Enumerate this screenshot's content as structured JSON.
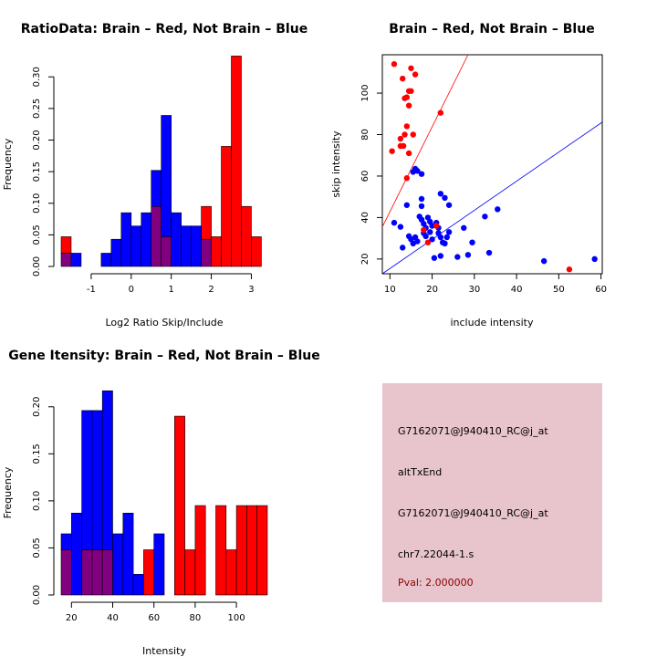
{
  "colors": {
    "brain": "#ff0000",
    "not_brain": "#0000ff",
    "overlap": "#800080",
    "info_bg": "#e8c4cc",
    "pval_text": "#8b0000"
  },
  "chart_data": [
    {
      "id": "ratio-hist",
      "type": "bar",
      "title": "RatioData: Brain – Red, Not Brain – Blue",
      "xlabel": "Log2 Ratio Skip/Include",
      "ylabel": "Frequency",
      "xlim": [
        -1.75,
        3.4
      ],
      "ylim": [
        0,
        0.335
      ],
      "xticks": [
        -1,
        0,
        1,
        2,
        3
      ],
      "yticks": [
        0.0,
        0.05,
        0.1,
        0.15,
        0.2,
        0.25,
        0.3
      ],
      "ytick_labels": [
        "0.00",
        "0.05",
        "0.10",
        "0.15",
        "0.20",
        "0.25",
        "0.30"
      ],
      "series": [
        {
          "name": "Not Brain",
          "color": "#0000ff",
          "bins": [
            {
              "x0": -1.75,
              "x1": -1.5,
              "value": 0.021
            },
            {
              "x0": -1.5,
              "x1": -1.25,
              "value": 0.021
            },
            {
              "x0": -0.75,
              "x1": -0.5,
              "value": 0.021
            },
            {
              "x0": -0.5,
              "x1": -0.25,
              "value": 0.043
            },
            {
              "x0": -0.25,
              "x1": 0.0,
              "value": 0.085
            },
            {
              "x0": 0.0,
              "x1": 0.25,
              "value": 0.064
            },
            {
              "x0": 0.25,
              "x1": 0.5,
              "value": 0.085
            },
            {
              "x0": 0.5,
              "x1": 0.75,
              "value": 0.152
            },
            {
              "x0": 0.75,
              "x1": 1.0,
              "value": 0.239
            },
            {
              "x0": 1.0,
              "x1": 1.25,
              "value": 0.085
            },
            {
              "x0": 1.25,
              "x1": 1.5,
              "value": 0.064
            },
            {
              "x0": 1.5,
              "x1": 1.75,
              "value": 0.064
            },
            {
              "x0": 1.75,
              "x1": 2.0,
              "value": 0.043
            }
          ]
        },
        {
          "name": "Brain",
          "color": "#ff0000",
          "bins": [
            {
              "x0": -1.75,
              "x1": -1.5,
              "value": 0.047
            },
            {
              "x0": 0.5,
              "x1": 0.75,
              "value": 0.095
            },
            {
              "x0": 0.75,
              "x1": 1.0,
              "value": 0.047
            },
            {
              "x0": 1.75,
              "x1": 2.0,
              "value": 0.095
            },
            {
              "x0": 2.0,
              "x1": 2.25,
              "value": 0.047
            },
            {
              "x0": 2.25,
              "x1": 2.5,
              "value": 0.19
            },
            {
              "x0": 2.5,
              "x1": 2.75,
              "value": 0.333
            },
            {
              "x0": 2.75,
              "x1": 3.0,
              "value": 0.095
            },
            {
              "x0": 3.0,
              "x1": 3.25,
              "value": 0.047
            }
          ]
        }
      ]
    },
    {
      "id": "scatter",
      "type": "scatter",
      "title": "Brain – Red, Not Brain – Blue",
      "xlabel": "include intensity",
      "ylabel": "skip intensity",
      "xlim": [
        8.2,
        60.3
      ],
      "ylim": [
        12.9,
        118.5
      ],
      "xticks": [
        10,
        20,
        30,
        40,
        50,
        60
      ],
      "yticks": [
        20,
        40,
        60,
        80,
        100
      ],
      "series": [
        {
          "name": "Brain",
          "color": "#ff0000",
          "points": [
            [
              11,
              114
            ],
            [
              15,
              112
            ],
            [
              16,
              109
            ],
            [
              13,
              107
            ],
            [
              14.5,
              101
            ],
            [
              15,
              101
            ],
            [
              14,
              98
            ],
            [
              13.5,
              97.5
            ],
            [
              14.5,
              94
            ],
            [
              22,
              90.5
            ],
            [
              14,
              84
            ],
            [
              13.5,
              80
            ],
            [
              12.5,
              78
            ],
            [
              10.5,
              72
            ],
            [
              13.2,
              74.5
            ],
            [
              12.5,
              74.5
            ],
            [
              14.5,
              71
            ],
            [
              15.5,
              80
            ],
            [
              14,
              59
            ],
            [
              18,
              34
            ],
            [
              19,
              28
            ],
            [
              21,
              36
            ],
            [
              52.5,
              15
            ]
          ]
        },
        {
          "name": "Not Brain",
          "color": "#0000ff",
          "points": [
            [
              16,
              63.5
            ],
            [
              16.5,
              62.5
            ],
            [
              15.5,
              62
            ],
            [
              17.5,
              61
            ],
            [
              11,
              37.5
            ],
            [
              12.5,
              35.5
            ],
            [
              14,
              46
            ],
            [
              13,
              25.5
            ],
            [
              15,
              29.5
            ],
            [
              16,
              30.5
            ],
            [
              16.5,
              28.5
            ],
            [
              15.5,
              27.5
            ],
            [
              14.5,
              31
            ],
            [
              17.5,
              49
            ],
            [
              17.5,
              45.5
            ],
            [
              17,
              40.5
            ],
            [
              17.5,
              39
            ],
            [
              18,
              37
            ],
            [
              18.5,
              35
            ],
            [
              18,
              32.5
            ],
            [
              18.5,
              31
            ],
            [
              19,
              40
            ],
            [
              19.5,
              38
            ],
            [
              20,
              36
            ],
            [
              19.5,
              33
            ],
            [
              20,
              29.5
            ],
            [
              20.5,
              20.5
            ],
            [
              21,
              37.5
            ],
            [
              21.5,
              35
            ],
            [
              21.5,
              32.5
            ],
            [
              22,
              30.5
            ],
            [
              22.5,
              28
            ],
            [
              22,
              21.5
            ],
            [
              23,
              27.5
            ],
            [
              23.5,
              30.5
            ],
            [
              24,
              33
            ],
            [
              22,
              51.5
            ],
            [
              23,
              49.5
            ],
            [
              24,
              46
            ],
            [
              26,
              21
            ],
            [
              27.5,
              35
            ],
            [
              28.5,
              22
            ],
            [
              29.5,
              28
            ],
            [
              32.5,
              40.5
            ],
            [
              33.5,
              23
            ],
            [
              35.5,
              44
            ],
            [
              46.5,
              19
            ],
            [
              58.5,
              20
            ]
          ]
        }
      ],
      "lines": [
        {
          "name": "brain-fit",
          "color": "#ff0000",
          "points": [
            [
              8.2,
              35.5
            ],
            [
              28.5,
              118.5
            ]
          ]
        },
        {
          "name": "not-brain-fit",
          "color": "#0000ff",
          "points": [
            [
              8.2,
              12.9
            ],
            [
              60.3,
              86
            ]
          ]
        }
      ]
    },
    {
      "id": "intensity-hist",
      "type": "bar",
      "title": "Gene Itensity: Brain – Red, Not Brain – Blue",
      "xlabel": "Intensity",
      "ylabel": "Frequency",
      "xlim": [
        15,
        115
      ],
      "ylim": [
        0,
        0.225
      ],
      "xticks": [
        20,
        40,
        60,
        80,
        100
      ],
      "yticks": [
        0.0,
        0.05,
        0.1,
        0.15,
        0.2
      ],
      "ytick_labels": [
        "0.00",
        "0.05",
        "0.10",
        "0.15",
        "0.20"
      ],
      "series": [
        {
          "name": "Not Brain",
          "color": "#0000ff",
          "bins": [
            {
              "x0": 15,
              "x1": 20,
              "value": 0.065
            },
            {
              "x0": 20,
              "x1": 25,
              "value": 0.087
            },
            {
              "x0": 25,
              "x1": 30,
              "value": 0.196
            },
            {
              "x0": 30,
              "x1": 35,
              "value": 0.196
            },
            {
              "x0": 35,
              "x1": 40,
              "value": 0.217
            },
            {
              "x0": 40,
              "x1": 45,
              "value": 0.065
            },
            {
              "x0": 45,
              "x1": 50,
              "value": 0.087
            },
            {
              "x0": 50,
              "x1": 55,
              "value": 0.022
            },
            {
              "x0": 60,
              "x1": 65,
              "value": 0.065
            }
          ]
        },
        {
          "name": "Brain",
          "color": "#ff0000",
          "bins": [
            {
              "x0": 15,
              "x1": 20,
              "value": 0.048
            },
            {
              "x0": 25,
              "x1": 30,
              "value": 0.048
            },
            {
              "x0": 30,
              "x1": 35,
              "value": 0.048
            },
            {
              "x0": 35,
              "x1": 40,
              "value": 0.048
            },
            {
              "x0": 55,
              "x1": 60,
              "value": 0.048
            },
            {
              "x0": 70,
              "x1": 75,
              "value": 0.19
            },
            {
              "x0": 75,
              "x1": 80,
              "value": 0.048
            },
            {
              "x0": 80,
              "x1": 85,
              "value": 0.095
            },
            {
              "x0": 90,
              "x1": 95,
              "value": 0.095
            },
            {
              "x0": 95,
              "x1": 100,
              "value": 0.048
            },
            {
              "x0": 100,
              "x1": 105,
              "value": 0.095
            },
            {
              "x0": 105,
              "x1": 110,
              "value": 0.095
            },
            {
              "x0": 110,
              "x1": 115,
              "value": 0.095
            }
          ]
        }
      ]
    }
  ],
  "info_panel": {
    "probe_id": "G7162071@J940410_RC@j_at",
    "event_type": "altTxEnd",
    "probe_id_repeat": "G7162071@J940410_RC@j_at",
    "location": "chr7.22044-1.s",
    "pval": "Pval: 2.000000"
  }
}
